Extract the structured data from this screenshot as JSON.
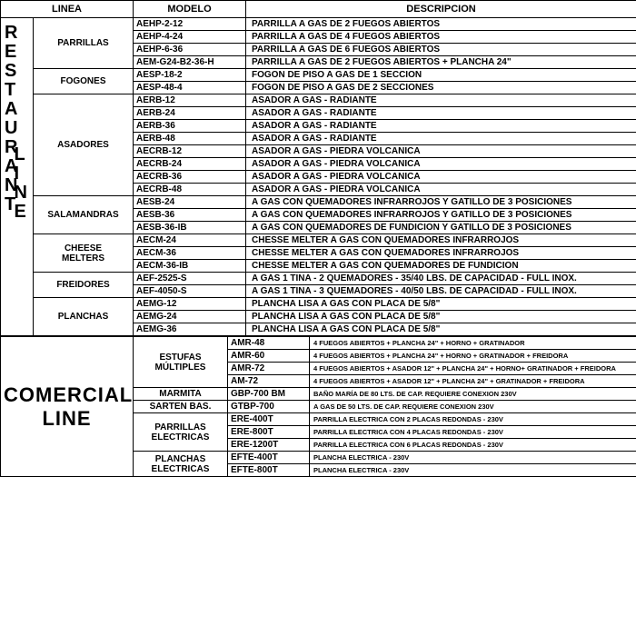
{
  "headers": {
    "linea": "LINEA",
    "modelo": "MODELO",
    "descripcion": "DESCRIPCION"
  },
  "restaurant": {
    "label_r": "RESTAURANT",
    "label_l": "LINE",
    "groups": [
      {
        "name": "PARRILLAS",
        "rows": [
          {
            "model": "AEHP-2-12",
            "desc": "PARRILLA A GAS DE 2 FUEGOS ABIERTOS"
          },
          {
            "model": "AEHP-4-24",
            "desc": "PARRILLA A GAS DE 4 FUEGOS ABIERTOS"
          },
          {
            "model": "AEHP-6-36",
            "desc": "PARRILLA A GAS DE 6 FUEGOS ABIERTOS"
          },
          {
            "model": "AEM-G24-B2-36-H",
            "desc": "PARRILLA A GAS DE 2 FUEGOS ABIERTOS + PLANCHA 24\""
          }
        ]
      },
      {
        "name": "FOGONES",
        "rows": [
          {
            "model": "AESP-18-2",
            "desc": "FOGON DE PISO A GAS DE 1 SECCION"
          },
          {
            "model": "AESP-48-4",
            "desc": "FOGON DE PISO A GAS DE 2 SECCIONES"
          }
        ]
      },
      {
        "name": "ASADORES",
        "rows": [
          {
            "model": "AERB-12",
            "desc": "ASADOR A GAS - RADIANTE"
          },
          {
            "model": "AERB-24",
            "desc": "ASADOR A GAS - RADIANTE"
          },
          {
            "model": "AERB-36",
            "desc": "ASADOR A GAS - RADIANTE"
          },
          {
            "model": "AERB-48",
            "desc": "ASADOR A GAS - RADIANTE"
          },
          {
            "model": "AECRB-12",
            "desc": "ASADOR A GAS - PIEDRA VOLCANICA"
          },
          {
            "model": "AECRB-24",
            "desc": "ASADOR A GAS - PIEDRA VOLCANICA"
          },
          {
            "model": "AECRB-36",
            "desc": "ASADOR A GAS - PIEDRA VOLCANICA"
          },
          {
            "model": "AECRB-48",
            "desc": "ASADOR A GAS - PIEDRA VOLCANICA"
          }
        ]
      },
      {
        "name": "SALAMANDRAS",
        "rows": [
          {
            "model": "AESB-24",
            "desc": "A GAS CON QUEMADORES INFRARROJOS Y GATILLO DE 3 POSICIONES"
          },
          {
            "model": "AESB-36",
            "desc": "A GAS CON QUEMADORES INFRARROJOS Y GATILLO DE 3 POSICIONES"
          },
          {
            "model": "AESB-36-IB",
            "desc": "A GAS CON QUEMADORES DE FUNDICION Y GATILLO DE 3 POSICIONES"
          }
        ]
      },
      {
        "name": "CHEESE MELTERS",
        "rows": [
          {
            "model": "AECM-24",
            "desc": "CHESSE MELTER A GAS CON QUEMADORES INFRARROJOS"
          },
          {
            "model": "AECM-36",
            "desc": "CHESSE MELTER A GAS CON QUEMADORES INFRARROJOS"
          },
          {
            "model": "AECM-36-IB",
            "desc": "CHESSE MELTER A GAS CON QUEMADORES DE FUNDICION"
          }
        ]
      },
      {
        "name": "FREIDORES",
        "rows": [
          {
            "model": "AEF-2525-S",
            "desc": "A GAS 1 TINA - 2 QUEMADORES - 35/40 LBS. DE CAPACIDAD - FULL INOX."
          },
          {
            "model": "AEF-4050-S",
            "desc": "A GAS 1 TINA - 3 QUEMADORES - 40/50 LBS. DE CAPACIDAD - FULL INOX."
          }
        ]
      },
      {
        "name": "PLANCHAS",
        "rows": [
          {
            "model": "AEMG-12",
            "desc": "PLANCHA LISA A GAS CON PLACA DE 5/8\""
          },
          {
            "model": "AEMG-24",
            "desc": "PLANCHA LISA A GAS CON PLACA DE 5/8\""
          },
          {
            "model": "AEMG-36",
            "desc": "PLANCHA LISA A GAS CON PLACA DE 5/8\""
          }
        ]
      }
    ]
  },
  "comercial": {
    "label": "COMERCIAL LINE",
    "groups": [
      {
        "name": "ESTUFAS MÚLTIPLES",
        "rows": [
          {
            "model": "AMR-48",
            "desc": "4 FUEGOS ABIERTOS + PLANCHA 24\" + HORNO + GRATINADOR"
          },
          {
            "model": "AMR-60",
            "desc": "4 FUEGOS ABIERTOS + PLANCHA 24\" + HORNO + GRATINADOR + FREIDORA"
          },
          {
            "model": "AMR-72",
            "desc": "4 FUEGOS ABIERTOS + ASADOR 12\" + PLANCHA 24\" + HORNO+ GRATINADOR + FREIDORA"
          },
          {
            "model": "AM-72",
            "desc": "4 FUEGOS ABIERTOS + ASADOR 12\" + PLANCHA 24\" + GRATINADOR + FREIDORA"
          }
        ]
      },
      {
        "name": "MARMITA",
        "rows": [
          {
            "model": "GBP-700 BM",
            "desc": "BAÑO MARÍA DE 80 LTS. DE CAP. REQUIERE CONEXION 230V"
          }
        ]
      },
      {
        "name": "SARTEN BAS.",
        "rows": [
          {
            "model": "GTBP-700",
            "desc": "A GAS DE 50 LTS. DE CAP. REQUIERE CONEXION 230V"
          }
        ]
      },
      {
        "name": "PARRILLAS ELECTRICAS",
        "rows": [
          {
            "model": "ERE-400T",
            "desc": "PARRILLA ELECTRICA CON 2 PLACAS REDONDAS - 230V"
          },
          {
            "model": "ERE-800T",
            "desc": "PARRILLA ELECTRICA CON 4 PLACAS REDONDAS - 230V"
          },
          {
            "model": "ERE-1200T",
            "desc": "PARRILLA ELECTRICA CON 6 PLACAS REDONDAS - 230V"
          }
        ]
      },
      {
        "name": "PLANCHAS ELECTRICAS",
        "rows": [
          {
            "model": "EFTE-400T",
            "desc": "PLANCHA ELECTRICA - 230V"
          },
          {
            "model": "EFTE-800T",
            "desc": "PLANCHA ELECTRICA - 230V"
          }
        ]
      }
    ]
  }
}
